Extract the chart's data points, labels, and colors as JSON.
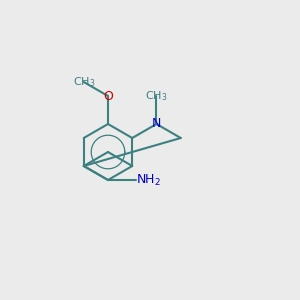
{
  "background_color": "#ebebeb",
  "bond_color": "#3d8080",
  "n_color": "#0000cc",
  "o_color": "#cc0000",
  "nh2_color": "#3d8080",
  "lw": 1.5,
  "font_size": 9,
  "figsize": [
    3.0,
    3.0
  ],
  "dpi": 100
}
